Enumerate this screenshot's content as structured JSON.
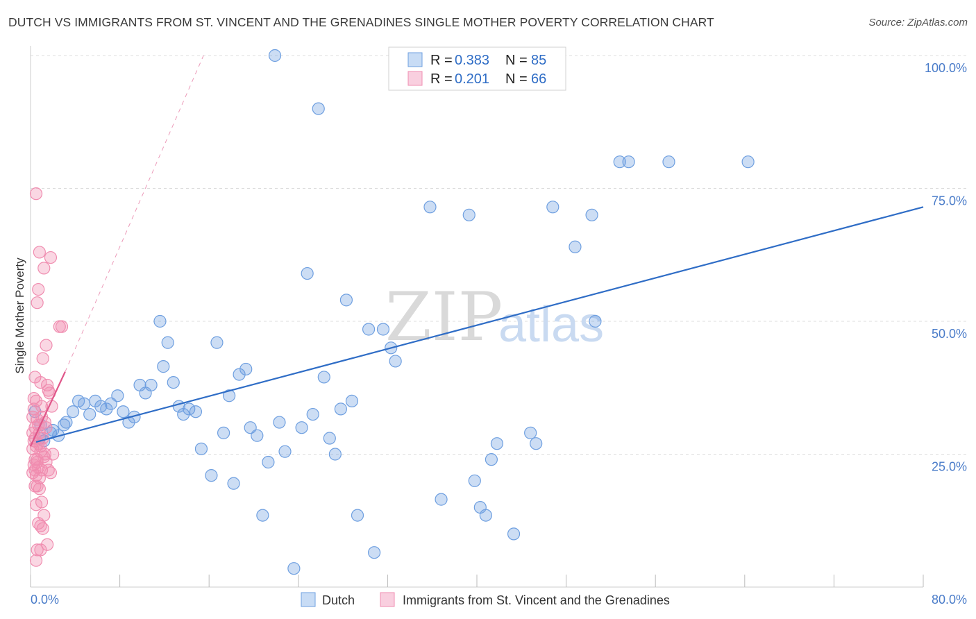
{
  "title": "DUTCH VS IMMIGRANTS FROM ST. VINCENT AND THE GRENADINES SINGLE MOTHER POVERTY CORRELATION CHART",
  "source": "Source: ZipAtlas.com",
  "watermark": {
    "zip": "ZIP",
    "atlas": "atlas"
  },
  "colors": {
    "dutch": "#6e9fe0",
    "dutch_line": "#2f6dc6",
    "svg": "#f08db0",
    "svg_line": "#e0578a",
    "tick": "#4a7cc9"
  },
  "legend": {
    "rows": [
      {
        "r_label": "R = ",
        "r_value": "0.383",
        "n_label": "N = ",
        "n_value": "85"
      },
      {
        "r_label": "R = ",
        "r_value": "0.201",
        "n_label": "N = ",
        "n_value": "66"
      }
    ]
  },
  "chart_data": {
    "type": "scatter",
    "title": "DUTCH VS IMMIGRANTS FROM ST. VINCENT AND THE GRENADINES SINGLE MOTHER POVERTY CORRELATION CHART",
    "xlabel": "",
    "ylabel": "Single Mother Poverty",
    "xlim": [
      0,
      80
    ],
    "ylim": [
      0,
      100
    ],
    "x_tick_labels": [
      "0.0%",
      "80.0%"
    ],
    "y_tick_labels": [
      "25.0%",
      "50.0%",
      "75.0%",
      "100.0%"
    ],
    "y_ticks": [
      25,
      50,
      75,
      100
    ],
    "x_ticks": [
      0,
      8,
      16,
      24,
      32,
      40,
      48,
      56,
      64,
      72,
      80
    ],
    "grid": true,
    "legend_position": "bottom",
    "series": [
      {
        "name": "Dutch",
        "R": 0.383,
        "N": 85,
        "trend": {
          "x": [
            0.5,
            80
          ],
          "y": [
            27.3,
            71.5
          ],
          "dashed_extension": false
        },
        "points": [
          [
            0.8,
            28
          ],
          [
            1.2,
            27.5
          ],
          [
            1.8,
            29
          ],
          [
            2,
            29.5
          ],
          [
            3,
            30.5
          ],
          [
            3.2,
            31
          ],
          [
            3.8,
            33
          ],
          [
            4.3,
            35
          ],
          [
            4.8,
            34.5
          ],
          [
            5.3,
            32.5
          ],
          [
            5.8,
            35
          ],
          [
            6.3,
            34
          ],
          [
            6.8,
            33.5
          ],
          [
            7.2,
            34.5
          ],
          [
            7.8,
            36
          ],
          [
            8.3,
            33
          ],
          [
            8.8,
            31
          ],
          [
            9.3,
            32
          ],
          [
            9.8,
            38
          ],
          [
            10.3,
            36.5
          ],
          [
            10.8,
            38
          ],
          [
            11.6,
            50
          ],
          [
            11.9,
            41.5
          ],
          [
            12.3,
            46
          ],
          [
            12.8,
            38.5
          ],
          [
            13.3,
            34
          ],
          [
            13.7,
            32.5
          ],
          [
            14.2,
            33.5
          ],
          [
            14.8,
            33
          ],
          [
            15.3,
            26
          ],
          [
            16.2,
            21
          ],
          [
            16.7,
            46
          ],
          [
            17.3,
            29
          ],
          [
            17.8,
            36
          ],
          [
            18.2,
            19.5
          ],
          [
            18.7,
            40
          ],
          [
            19.3,
            41
          ],
          [
            19.7,
            30
          ],
          [
            20.3,
            28.5
          ],
          [
            20.8,
            13.5
          ],
          [
            21.3,
            23.5
          ],
          [
            22.3,
            31
          ],
          [
            22.8,
            25.5
          ],
          [
            23.6,
            3.5
          ],
          [
            24.3,
            30
          ],
          [
            24.8,
            59
          ],
          [
            25.3,
            32.5
          ],
          [
            25.8,
            90
          ],
          [
            26.3,
            39.5
          ],
          [
            26.8,
            28
          ],
          [
            27.3,
            25
          ],
          [
            27.8,
            33.5
          ],
          [
            28.3,
            54
          ],
          [
            28.8,
            35
          ],
          [
            29.3,
            13.5
          ],
          [
            30.3,
            48.5
          ],
          [
            30.8,
            6.5
          ],
          [
            31.6,
            48.5
          ],
          [
            32.3,
            45
          ],
          [
            32.7,
            42.5
          ],
          [
            21.9,
            100
          ],
          [
            34.2,
            100
          ],
          [
            35.3,
            100
          ],
          [
            35.8,
            71.5
          ],
          [
            36.8,
            16.5
          ],
          [
            39.3,
            70
          ],
          [
            39.8,
            20
          ],
          [
            40.3,
            15
          ],
          [
            40.8,
            13.5
          ],
          [
            41.3,
            24
          ],
          [
            41.8,
            27
          ],
          [
            43.3,
            10
          ],
          [
            44.8,
            29
          ],
          [
            45.3,
            27
          ],
          [
            46.8,
            71.5
          ],
          [
            48.8,
            64
          ],
          [
            50.3,
            70
          ],
          [
            50.6,
            50
          ],
          [
            52.8,
            80
          ],
          [
            53.6,
            80
          ],
          [
            57.2,
            80
          ],
          [
            64.3,
            80
          ],
          [
            0.4,
            33
          ],
          [
            0.9,
            30.5
          ],
          [
            2.5,
            28.5
          ]
        ]
      },
      {
        "name": "Immigrants from St. Vincent and the Grenadines",
        "R": 0.201,
        "N": 66,
        "trend": {
          "x": [
            0,
            3.1
          ],
          "y": [
            26.5,
            40.5
          ],
          "dashed_extension": true,
          "dashed_to": [
            15.5,
            100
          ]
        },
        "points": [
          [
            0.5,
            74
          ],
          [
            0.8,
            63
          ],
          [
            0.7,
            56
          ],
          [
            0.6,
            53.5
          ],
          [
            1.2,
            60
          ],
          [
            1.8,
            62
          ],
          [
            2.6,
            49
          ],
          [
            2.8,
            49
          ],
          [
            1.4,
            45.5
          ],
          [
            1.1,
            43
          ],
          [
            0.4,
            39.5
          ],
          [
            0.9,
            38.5
          ],
          [
            1.5,
            38
          ],
          [
            1.6,
            37
          ],
          [
            1.7,
            36.5
          ],
          [
            0.3,
            35.5
          ],
          [
            0.5,
            35
          ],
          [
            1.0,
            34
          ],
          [
            1.9,
            34
          ],
          [
            0.2,
            32
          ],
          [
            0.6,
            31.5
          ],
          [
            0.7,
            30.5
          ],
          [
            0.4,
            30
          ],
          [
            0.8,
            29
          ],
          [
            1.1,
            28
          ],
          [
            0.3,
            27.5
          ],
          [
            0.5,
            26.5
          ],
          [
            0.2,
            26
          ],
          [
            0.9,
            25.5
          ],
          [
            1.3,
            25
          ],
          [
            2.0,
            25
          ],
          [
            0.4,
            24
          ],
          [
            0.6,
            23.5
          ],
          [
            1.4,
            23.5
          ],
          [
            0.3,
            23
          ],
          [
            0.7,
            22.5
          ],
          [
            1.0,
            22
          ],
          [
            1.6,
            22
          ],
          [
            0.2,
            21.5
          ],
          [
            0.5,
            21
          ],
          [
            0.8,
            20.5
          ],
          [
            1.8,
            21.5
          ],
          [
            0.4,
            19
          ],
          [
            0.6,
            19
          ],
          [
            1.0,
            16
          ],
          [
            0.5,
            15.5
          ],
          [
            1.2,
            13.5
          ],
          [
            0.7,
            12
          ],
          [
            0.9,
            11.5
          ],
          [
            1.1,
            11
          ],
          [
            1.5,
            8
          ],
          [
            0.6,
            7
          ],
          [
            0.9,
            7
          ],
          [
            0.5,
            5
          ],
          [
            0.3,
            33.5
          ],
          [
            0.4,
            28
          ],
          [
            1.3,
            31
          ],
          [
            0.6,
            24
          ],
          [
            0.7,
            27
          ],
          [
            1.0,
            32
          ],
          [
            0.2,
            29
          ],
          [
            0.9,
            26.5
          ],
          [
            1.2,
            24.5
          ],
          [
            0.4,
            22
          ],
          [
            0.8,
            18.5
          ],
          [
            1.4,
            30
          ]
        ]
      }
    ]
  },
  "bottom_legend": [
    {
      "label": "Dutch"
    },
    {
      "label": "Immigrants from St. Vincent and the Grenadines"
    }
  ]
}
